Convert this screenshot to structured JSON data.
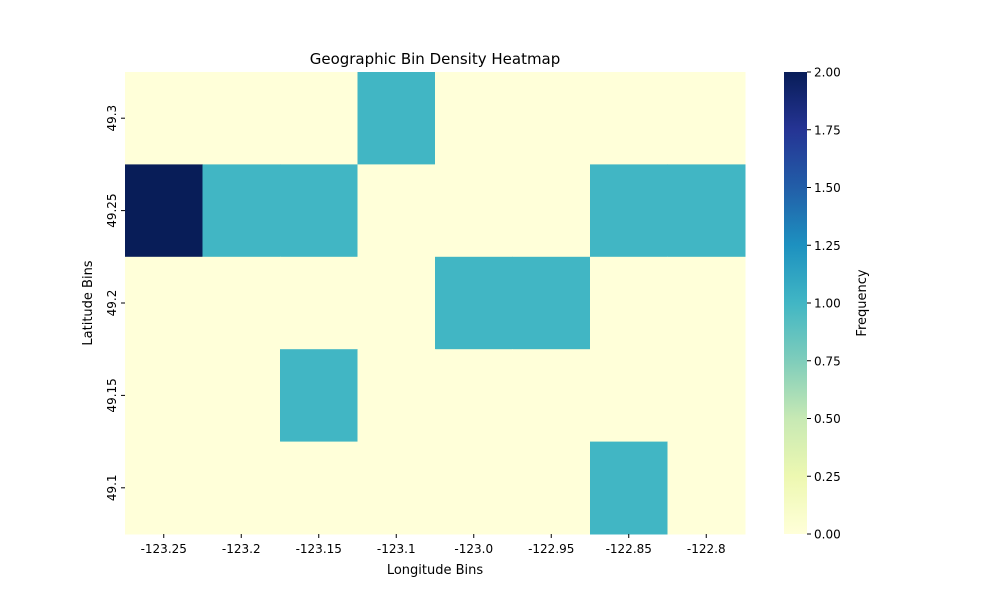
{
  "chart_data": {
    "type": "heatmap",
    "title": "Geographic Bin Density Heatmap",
    "xlabel": "Longitude Bins",
    "ylabel": "Latitude Bins",
    "x_categories": [
      "-123.25",
      "-123.2",
      "-123.15",
      "-123.1",
      "-123.0",
      "-122.95",
      "-122.85",
      "-122.8"
    ],
    "y_categories": [
      "49.3",
      "49.25",
      "49.2",
      "49.15",
      "49.1"
    ],
    "values": [
      [
        0,
        0,
        0,
        1,
        0,
        0,
        0,
        0
      ],
      [
        2,
        1,
        1,
        0,
        0,
        0,
        1,
        1
      ],
      [
        0,
        0,
        0,
        0,
        1,
        1,
        0,
        0
      ],
      [
        0,
        0,
        1,
        0,
        0,
        0,
        0,
        0
      ],
      [
        0,
        0,
        0,
        0,
        0,
        0,
        1,
        0
      ]
    ],
    "colorbar": {
      "label": "Frequency",
      "range": [
        0,
        2
      ],
      "ticks": [
        "0.00",
        "0.25",
        "0.50",
        "0.75",
        "1.00",
        "1.25",
        "1.50",
        "1.75",
        "2.00"
      ],
      "colormap": [
        "#ffffd9",
        "#edf8b1",
        "#c7e9b4",
        "#7fcdbb",
        "#41b6c4",
        "#1d91c0",
        "#225ea8",
        "#253494",
        "#081d58"
      ]
    }
  }
}
